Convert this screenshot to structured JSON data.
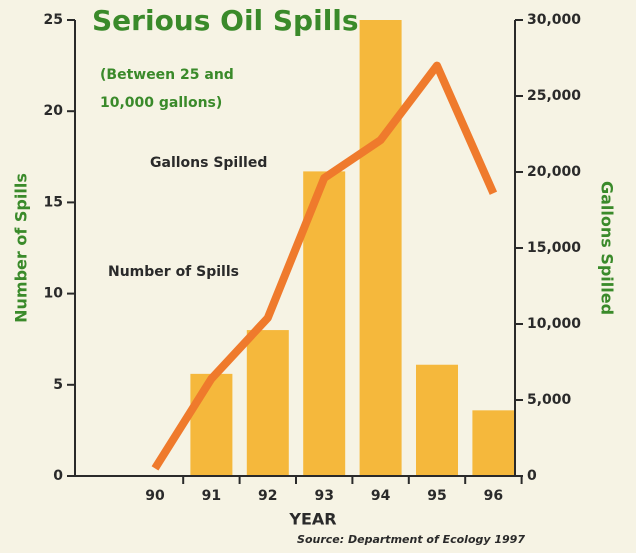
{
  "chart_data": {
    "type": "bar_line",
    "title": "Serious Oil Spills",
    "subtitle": [
      "(Between 25 and",
      "10,000 gallons)"
    ],
    "xlabel": "YEAR",
    "ylabel": "Number of Spills",
    "y2label": "Gallons Spilled",
    "source": "Source: Department of Ecology 1997",
    "categories": [
      "90",
      "91",
      "92",
      "93",
      "94",
      "95",
      "96"
    ],
    "series": [
      {
        "name": "Number of Spills",
        "type": "bar",
        "color": "#f5b83c",
        "axis": "y",
        "values": [
          0,
          5.6,
          8,
          16.7,
          25,
          6.1,
          3.6
        ]
      },
      {
        "name": "Gallons Spilled",
        "type": "line",
        "color": "#ef7a2c",
        "axis": "y2",
        "values": [
          500,
          6400,
          10400,
          19600,
          22100,
          27000,
          18600
        ]
      }
    ],
    "ylim": [
      0,
      25
    ],
    "yticks": [
      0,
      5,
      10,
      15,
      20,
      25
    ],
    "y2lim": [
      0,
      30000
    ],
    "y2ticks": [
      0,
      {
        "value": 5000,
        "label": "5,000"
      },
      {
        "value": 10000,
        "label": "10,000"
      },
      {
        "value": 15000,
        "label": "15,000"
      },
      {
        "value": 20000,
        "label": "20,000"
      },
      {
        "value": 25000,
        "label": "25,000"
      },
      {
        "value": 30000,
        "label": "30,000"
      }
    ],
    "grid": false
  }
}
